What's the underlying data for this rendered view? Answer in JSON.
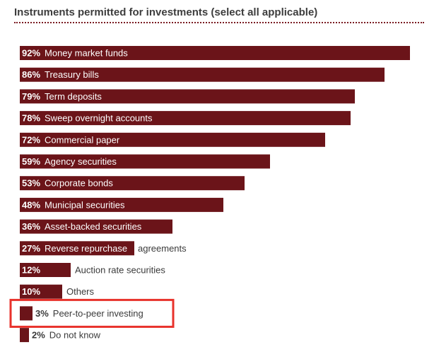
{
  "chart_data": {
    "type": "bar",
    "orientation": "horizontal",
    "title": "Instruments permitted for investments (select all applicable)",
    "xlim": [
      0,
      100
    ],
    "grid": false,
    "categories": [
      "Money market funds",
      "Treasury bills",
      "Term deposits",
      "Sweep overnight accounts",
      "Commercial paper",
      "Agency securities",
      "Corporate bonds",
      "Municipal securities",
      "Asset-backed securities",
      "Reverse repurchase agreements",
      "Auction rate securities",
      "Others",
      "Peer-to-peer investing",
      "Do not know"
    ],
    "values": [
      92,
      86,
      79,
      78,
      72,
      59,
      53,
      48,
      36,
      27,
      12,
      10,
      3,
      2
    ],
    "value_labels": [
      "92%",
      "86%",
      "79%",
      "78%",
      "72%",
      "59%",
      "53%",
      "48%",
      "36%",
      "27%",
      "12%",
      "10%",
      "3%",
      "2%"
    ],
    "highlighted_category": "Peer-to-peer investing",
    "colors": {
      "bar": "#6b1419",
      "highlight_outline": "#e8322b",
      "label_on_bar": "#ffffff",
      "label_off_bar": "#3a3a3a",
      "title": "#3d3d3d",
      "rule": "#7a1c22"
    }
  }
}
